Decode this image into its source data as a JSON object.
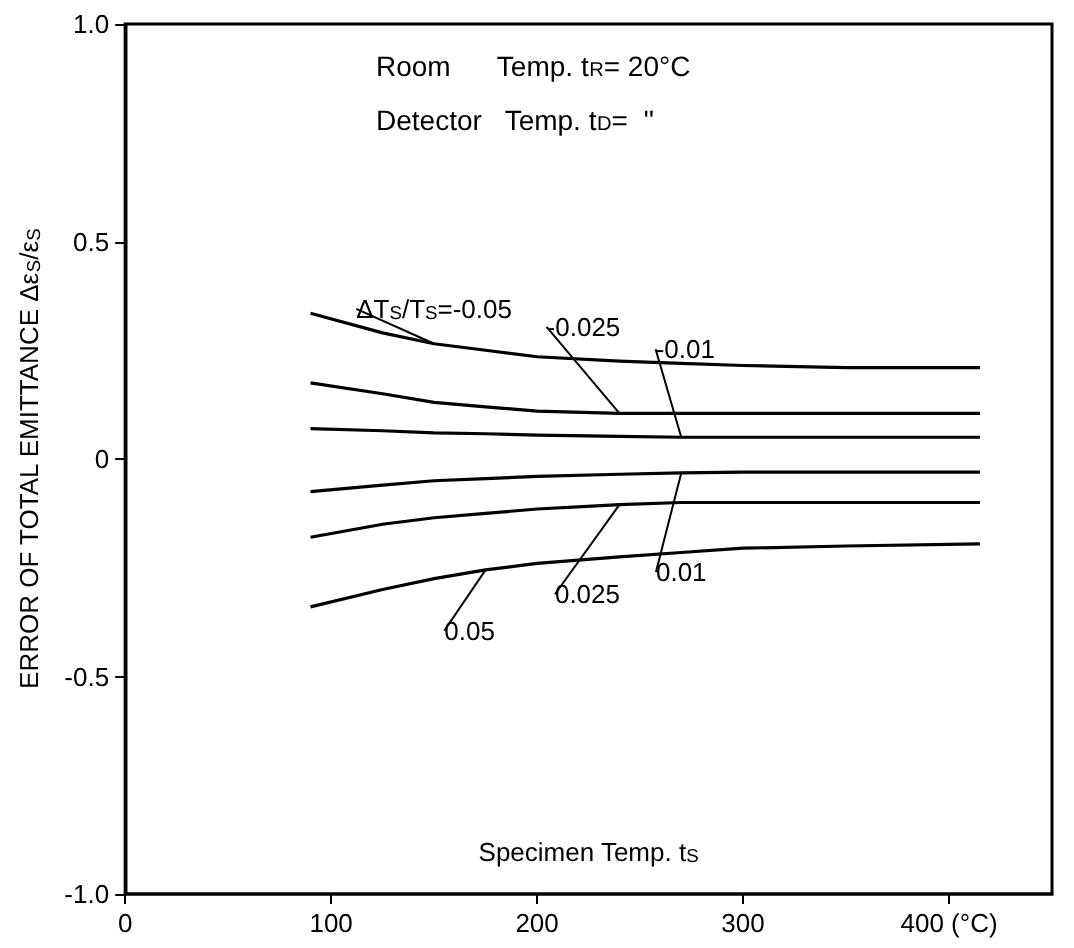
{
  "chart_data": {
    "type": "line",
    "xlabel": "Specimen Temp. t$_{S}$",
    "ylabel": "ERROR OF TOTAL EMITTANCE Δε$_{S}$/ε$_{S}$",
    "annotations": [
      "Room      Temp. t$_{R}$= 20°C",
      "Detector   Temp. t$_{D}$=  ''"
    ],
    "x": [
      90,
      125,
      150,
      175,
      200,
      240,
      270,
      300,
      350,
      415
    ],
    "series": [
      {
        "name": "ΔT$_{S}$/T$_{S}$=-0.05",
        "color": "#000000",
        "values": [
          0.335,
          0.29,
          0.265,
          0.25,
          0.235,
          0.225,
          0.22,
          0.215,
          0.21,
          0.21
        ]
      },
      {
        "name": "-0.025",
        "color": "#000000",
        "values": [
          0.175,
          0.15,
          0.13,
          0.12,
          0.11,
          0.105,
          0.105,
          0.105,
          0.105,
          0.105
        ]
      },
      {
        "name": "-0.01",
        "color": "#000000",
        "values": [
          0.07,
          0.065,
          0.06,
          0.058,
          0.055,
          0.052,
          0.05,
          0.05,
          0.05,
          0.05
        ]
      },
      {
        "name": "0.01",
        "color": "#000000",
        "values": [
          -0.075,
          -0.06,
          -0.05,
          -0.045,
          -0.04,
          -0.035,
          -0.032,
          -0.03,
          -0.03,
          -0.03
        ]
      },
      {
        "name": "0.025",
        "color": "#000000",
        "values": [
          -0.18,
          -0.15,
          -0.135,
          -0.125,
          -0.115,
          -0.105,
          -0.1,
          -0.1,
          -0.1,
          -0.1
        ]
      },
      {
        "name": "0.05",
        "color": "#000000",
        "values": [
          -0.34,
          -0.3,
          -0.275,
          -0.255,
          -0.24,
          -0.225,
          -0.215,
          -0.205,
          -0.2,
          -0.195
        ]
      }
    ],
    "xlim": [
      0,
      450
    ],
    "xticks": [
      0,
      100,
      200,
      300,
      {
        "value": 400,
        "label": "400 (°C)"
      }
    ],
    "ylim": [
      -1,
      1
    ],
    "yticks": [
      {
        "value": -1,
        "label": "-1.0"
      },
      -0.5,
      0,
      0.5,
      {
        "value": 1,
        "label": "1.0"
      }
    ],
    "grid": false,
    "legend": false,
    "marker": "none",
    "line_style": "solid"
  }
}
